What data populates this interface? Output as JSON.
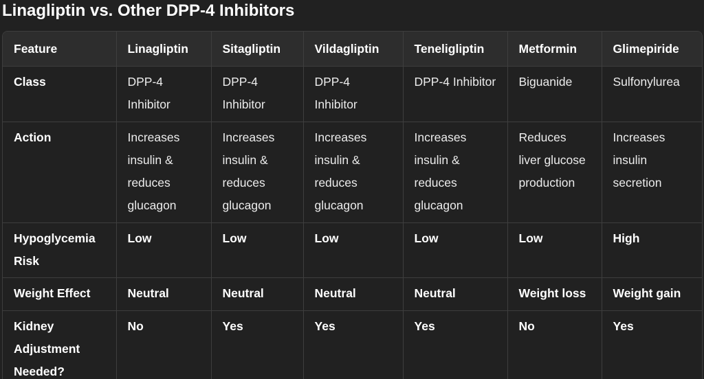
{
  "title": "Linagliptin vs. Other DPP-4 Inhibitors",
  "table": {
    "headers": [
      "Feature",
      "Linagliptin",
      "Sitagliptin",
      "Vildagliptin",
      "Teneligliptin",
      "Metformin",
      "Glimepiride"
    ],
    "rows": [
      {
        "feature": "Class",
        "cells": [
          "DPP-4 Inhibitor",
          "DPP-4 Inhibitor",
          "DPP-4 Inhibitor",
          "DPP-4 Inhibitor",
          "Biguanide",
          "Sulfonylurea"
        ]
      },
      {
        "feature": "Action",
        "cells": [
          "Increases insulin & reduces glucagon",
          "Increases insulin & reduces glucagon",
          "Increases insulin & reduces glucagon",
          "Increases insulin & reduces glucagon",
          "Reduces liver glucose production",
          "Increases insulin secretion"
        ]
      },
      {
        "feature": "Hypoglycemia Risk",
        "cells": [
          "Low",
          "Low",
          "Low",
          "Low",
          "Low",
          "High"
        ]
      },
      {
        "feature": "Weight Effect",
        "cells": [
          "Neutral",
          "Neutral",
          "Neutral",
          "Neutral",
          "Weight loss",
          "Weight gain"
        ]
      },
      {
        "feature": "Kidney Adjustment Needed?",
        "cells": [
          "No",
          "Yes",
          "Yes",
          "Yes",
          "No",
          "Yes"
        ]
      }
    ]
  }
}
